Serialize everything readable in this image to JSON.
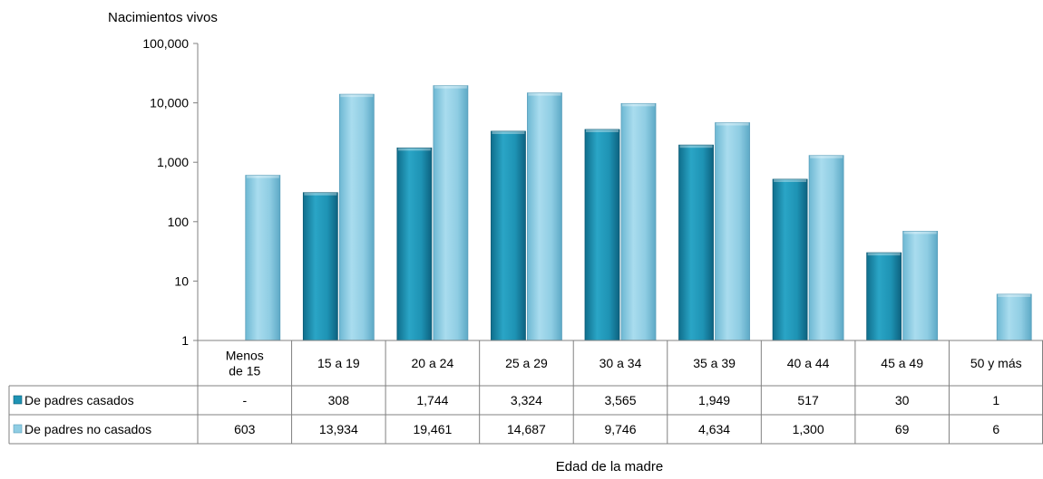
{
  "chart_data": {
    "type": "bar",
    "scale": "log",
    "ylabel": "Nacimientos vivos",
    "xlabel": "Edad de la madre",
    "ylim": [
      1,
      100000
    ],
    "yticks": [
      {
        "value": 1,
        "label": "1"
      },
      {
        "value": 10,
        "label": "10"
      },
      {
        "value": 100,
        "label": "100"
      },
      {
        "value": 1000,
        "label": "1,000"
      },
      {
        "value": 10000,
        "label": "10,000"
      },
      {
        "value": 100000,
        "label": "100,000"
      }
    ],
    "categories": [
      [
        "Menos",
        "de 15"
      ],
      [
        "15 a 19"
      ],
      [
        "20 a 24"
      ],
      [
        "25 a 29"
      ],
      [
        "30 a 34"
      ],
      [
        "35 a 39"
      ],
      [
        "40 a 44"
      ],
      [
        "45 a 49"
      ],
      [
        "50 y más"
      ]
    ],
    "series": [
      {
        "name": "De padres casados",
        "color": "#1E93B4",
        "values": [
          null,
          308,
          1744,
          3324,
          3565,
          1949,
          517,
          30,
          1
        ],
        "labels": [
          "-",
          "308",
          "1,744",
          "3,324",
          "3,565",
          "1,949",
          "517",
          "30",
          "1"
        ]
      },
      {
        "name": "De padres no casados",
        "color": "#8FCDE3",
        "values": [
          603,
          13934,
          19461,
          14687,
          9746,
          4634,
          1300,
          69,
          6
        ],
        "labels": [
          "603",
          "13,934",
          "19,461",
          "14,687",
          "9,746",
          "4,634",
          "1,300",
          "69",
          "6"
        ]
      }
    ]
  }
}
